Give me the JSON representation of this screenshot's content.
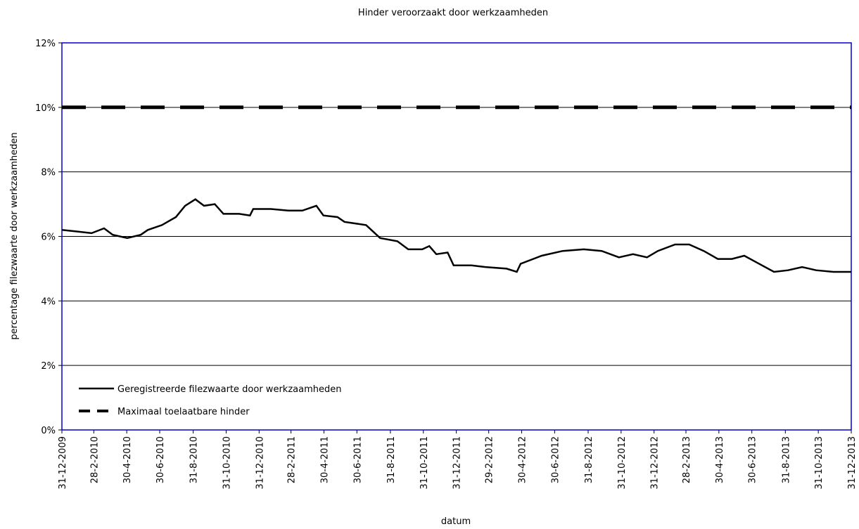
{
  "chart_data": {
    "type": "line",
    "title": "Hinder veroorzaakt door werkzaamheden",
    "x_label": "datum",
    "y_label": "percentage filezwaarte door werkzaamheden",
    "xlim": [
      "2009-12-31",
      "2013-12-31"
    ],
    "xticks": [
      {
        "value": "2009-12-31",
        "label": "31-12-2009"
      },
      {
        "value": "2010-02-28",
        "label": "28-2-2010"
      },
      {
        "value": "2010-04-30",
        "label": "30-4-2010"
      },
      {
        "value": "2010-06-30",
        "label": "30-6-2010"
      },
      {
        "value": "2010-08-31",
        "label": "31-8-2010"
      },
      {
        "value": "2010-10-31",
        "label": "31-10-2010"
      },
      {
        "value": "2010-12-31",
        "label": "31-12-2010"
      },
      {
        "value": "2011-02-28",
        "label": "28-2-2011"
      },
      {
        "value": "2011-04-30",
        "label": "30-4-2011"
      },
      {
        "value": "2011-06-30",
        "label": "30-6-2011"
      },
      {
        "value": "2011-08-31",
        "label": "31-8-2011"
      },
      {
        "value": "2011-10-31",
        "label": "31-10-2011"
      },
      {
        "value": "2011-12-31",
        "label": "31-12-2011"
      },
      {
        "value": "2012-02-29",
        "label": "29-2-2012"
      },
      {
        "value": "2012-04-30",
        "label": "30-4-2012"
      },
      {
        "value": "2012-06-30",
        "label": "30-6-2012"
      },
      {
        "value": "2012-08-31",
        "label": "31-8-2012"
      },
      {
        "value": "2012-10-31",
        "label": "31-10-2012"
      },
      {
        "value": "2012-12-31",
        "label": "31-12-2012"
      },
      {
        "value": "2013-02-28",
        "label": "28-2-2013"
      },
      {
        "value": "2013-04-30",
        "label": "30-4-2013"
      },
      {
        "value": "2013-06-30",
        "label": "30-6-2013"
      },
      {
        "value": "2013-08-31",
        "label": "31-8-2013"
      },
      {
        "value": "2013-10-31",
        "label": "31-10-2013"
      },
      {
        "value": "2013-12-31",
        "label": "31-12-2013"
      }
    ],
    "ylim": [
      0,
      12
    ],
    "yticks": [
      {
        "value": 0,
        "label": "0%"
      },
      {
        "value": 2,
        "label": "2%"
      },
      {
        "value": 4,
        "label": "4%"
      },
      {
        "value": 6,
        "label": "6%"
      },
      {
        "value": 8,
        "label": "8%"
      },
      {
        "value": 10,
        "label": "10%"
      },
      {
        "value": 12,
        "label": "12%"
      }
    ],
    "grid": true,
    "legend": "lower left",
    "series": [
      {
        "name": "Geregistreerde filezwaarte door werkzaamheden",
        "color": "#000000",
        "dashed": false,
        "x": [
          "2009-12-31",
          "2010-01-29",
          "2010-02-24",
          "2010-03-19",
          "2010-04-04",
          "2010-05-01",
          "2010-05-26",
          "2010-06-08",
          "2010-07-04",
          "2010-07-30",
          "2010-08-16",
          "2010-09-04",
          "2010-09-20",
          "2010-10-10",
          "2010-10-26",
          "2010-11-24",
          "2010-12-14",
          "2010-12-20",
          "2011-01-22",
          "2011-02-23",
          "2011-03-21",
          "2011-04-16",
          "2011-04-29",
          "2011-05-25",
          "2011-06-07",
          "2011-07-17",
          "2011-08-12",
          "2011-09-13",
          "2011-10-03",
          "2011-10-29",
          "2011-11-11",
          "2011-11-24",
          "2011-12-15",
          "2011-12-26",
          "2012-01-28",
          "2012-02-23",
          "2012-04-02",
          "2012-04-21",
          "2012-04-28",
          "2012-06-06",
          "2012-07-15",
          "2012-08-23",
          "2012-09-25",
          "2012-10-27",
          "2012-11-22",
          "2012-12-18",
          "2013-01-07",
          "2013-02-08",
          "2013-03-06",
          "2013-04-02",
          "2013-04-28",
          "2013-05-24",
          "2013-06-16",
          "2013-07-08",
          "2013-08-10",
          "2013-09-05",
          "2013-10-01",
          "2013-10-27",
          "2013-11-28",
          "2013-12-31"
        ],
        "values": [
          6.2,
          6.15,
          6.1,
          6.25,
          6.05,
          5.95,
          6.05,
          6.2,
          6.35,
          6.6,
          6.95,
          7.15,
          6.95,
          7.0,
          6.7,
          6.7,
          6.65,
          6.85,
          6.85,
          6.8,
          6.8,
          6.95,
          6.65,
          6.6,
          6.45,
          6.35,
          5.95,
          5.85,
          5.6,
          5.6,
          5.7,
          5.45,
          5.5,
          5.1,
          5.1,
          5.05,
          5.0,
          4.9,
          5.15,
          5.4,
          5.55,
          5.6,
          5.55,
          5.35,
          5.45,
          5.35,
          5.55,
          5.75,
          5.75,
          5.55,
          5.3,
          5.3,
          5.4,
          5.2,
          4.9,
          4.95,
          5.05,
          4.95,
          4.9,
          4.9
        ]
      },
      {
        "name": "Maximaal toelaatbare hinder",
        "color": "#000000",
        "dashed": true,
        "x": [
          "2009-12-31",
          "2013-12-31"
        ],
        "values": [
          10,
          10
        ]
      }
    ]
  }
}
